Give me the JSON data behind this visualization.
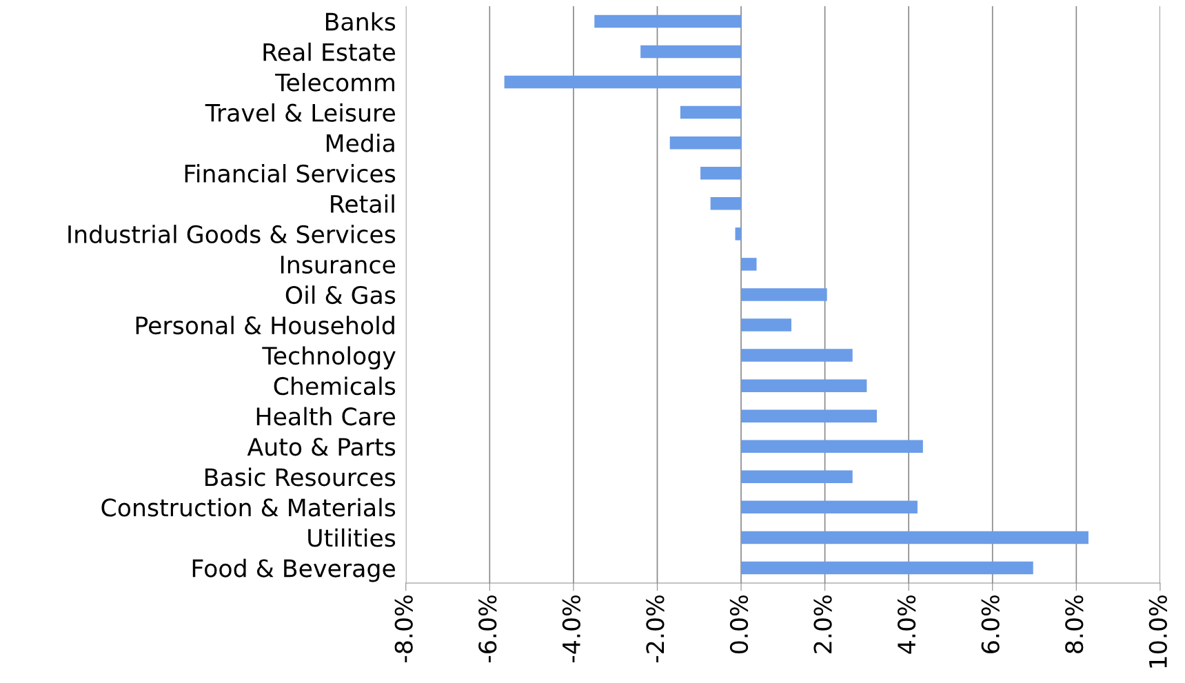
{
  "chart_data": {
    "type": "bar",
    "orientation": "horizontal",
    "categories": [
      "Banks",
      "Real Estate",
      "Telecomm",
      "Travel & Leisure",
      "Media",
      "Financial Services",
      "Retail",
      "Industrial Goods & Services",
      "Insurance",
      "Oil & Gas",
      "Personal & Household",
      "Technology",
      "Chemicals",
      "Health Care",
      "Auto & Parts",
      "Basic Resources",
      "Construction & Materials",
      "Utilities",
      "Food & Beverage"
    ],
    "values": [
      -3.5,
      -2.4,
      -5.65,
      -1.45,
      -1.7,
      -0.97,
      -0.73,
      -0.14,
      0.37,
      2.05,
      1.2,
      2.66,
      3.0,
      3.24,
      4.34,
      2.66,
      4.21,
      8.29,
      6.97
    ],
    "color": "#6b9ce8",
    "xlim": [
      -8,
      10
    ],
    "xticks": [
      {
        "value": -8,
        "label": "-8.0%"
      },
      {
        "value": -6,
        "label": "-6.0%"
      },
      {
        "value": -4,
        "label": "-4.0%"
      },
      {
        "value": -2,
        "label": "-2.0%"
      },
      {
        "value": 0,
        "label": "0.0%"
      },
      {
        "value": 2,
        "label": "2.0%"
      },
      {
        "value": 4,
        "label": "4.0%"
      },
      {
        "value": 6,
        "label": "6.0%"
      },
      {
        "value": 8,
        "label": "8.0%"
      },
      {
        "value": 10,
        "label": "10.0%"
      }
    ],
    "grid": "x",
    "legend": false
  }
}
